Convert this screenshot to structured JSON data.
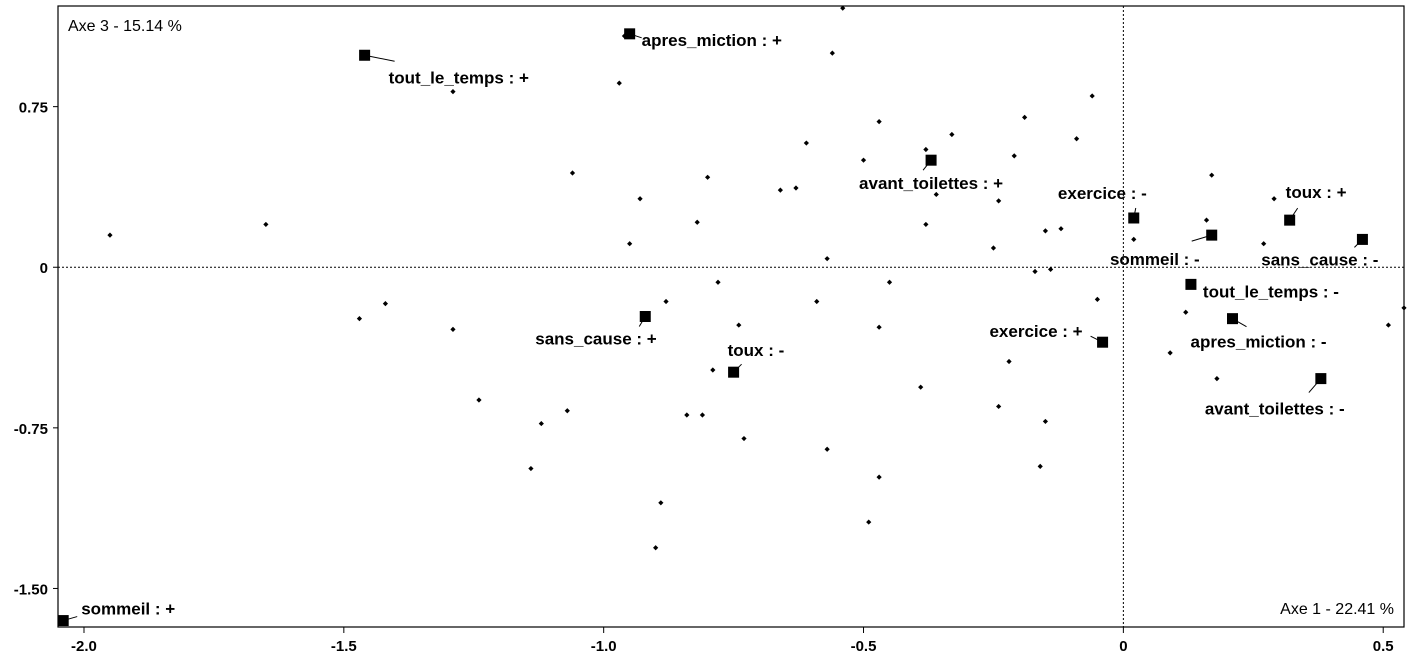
{
  "chart_data": {
    "type": "scatter",
    "title": "",
    "xlabel": "Axe 1  -  22.41 %",
    "ylabel": "Axe 3  -  15.14 %",
    "xlim": [
      -2.05,
      0.54
    ],
    "ylim": [
      -1.68,
      1.22
    ],
    "x_ticks": [
      {
        "value": -2.0,
        "label": "-2.0"
      },
      {
        "value": -1.5,
        "label": "-1.5"
      },
      {
        "value": -1.0,
        "label": "-1.0"
      },
      {
        "value": -0.5,
        "label": "-0.5"
      },
      {
        "value": 0,
        "label": "0"
      },
      {
        "value": 0.5,
        "label": "0.5"
      }
    ],
    "y_ticks": [
      {
        "value": 0.75,
        "label": "0.75"
      },
      {
        "value": 0,
        "label": "0"
      },
      {
        "value": -0.75,
        "label": "-0.75"
      },
      {
        "value": -1.5,
        "label": "-1.50"
      }
    ],
    "reference_lines": {
      "x": 0,
      "y": 0,
      "style": "dotted"
    },
    "categories": [
      {
        "label": "sommeil : +",
        "x": -2.04,
        "y": -1.65
      },
      {
        "label": "tout_le_temps : +",
        "x": -1.46,
        "y": 0.99
      },
      {
        "label": "apres_miction : +",
        "x": -0.95,
        "y": 1.09
      },
      {
        "label": "avant_toilettes : +",
        "x": -0.37,
        "y": 0.5
      },
      {
        "label": "sans_cause : +",
        "x": -0.92,
        "y": -0.23
      },
      {
        "label": "toux : -",
        "x": -0.75,
        "y": -0.49
      },
      {
        "label": "exercice : +",
        "x": -0.04,
        "y": -0.35
      },
      {
        "label": "exercice : -",
        "x": 0.02,
        "y": 0.23
      },
      {
        "label": "sommeil : -",
        "x": 0.17,
        "y": 0.15
      },
      {
        "label": "toux : +",
        "x": 0.32,
        "y": 0.22
      },
      {
        "label": "sans_cause : -",
        "x": 0.46,
        "y": 0.13
      },
      {
        "label": "tout_le_temps : -",
        "x": 0.13,
        "y": -0.08
      },
      {
        "label": "apres_miction : -",
        "x": 0.21,
        "y": -0.24
      },
      {
        "label": "avant_toilettes : -",
        "x": 0.38,
        "y": -0.52
      }
    ],
    "individuals": [
      [
        -1.95,
        0.15
      ],
      [
        -1.65,
        0.2
      ],
      [
        -1.47,
        -0.24
      ],
      [
        -1.42,
        -0.17
      ],
      [
        -1.29,
        -0.29
      ],
      [
        -1.29,
        0.82
      ],
      [
        -1.24,
        -0.62
      ],
      [
        -1.14,
        -0.94
      ],
      [
        -1.12,
        -0.73
      ],
      [
        -1.07,
        -0.67
      ],
      [
        -1.06,
        0.44
      ],
      [
        -0.95,
        0.11
      ],
      [
        -0.97,
        0.86
      ],
      [
        -0.96,
        1.08
      ],
      [
        -0.93,
        0.32
      ],
      [
        -0.89,
        -1.1
      ],
      [
        -0.9,
        -1.31
      ],
      [
        -0.88,
        -0.16
      ],
      [
        -0.84,
        -0.69
      ],
      [
        -0.82,
        0.21
      ],
      [
        -0.81,
        -0.69
      ],
      [
        -0.8,
        0.42
      ],
      [
        -0.79,
        -0.48
      ],
      [
        -0.78,
        -0.07
      ],
      [
        -0.74,
        -0.27
      ],
      [
        -0.73,
        -0.8
      ],
      [
        -0.66,
        0.36
      ],
      [
        -0.63,
        0.37
      ],
      [
        -0.61,
        0.58
      ],
      [
        -0.59,
        -0.16
      ],
      [
        -0.57,
        0.04
      ],
      [
        -0.57,
        -0.85
      ],
      [
        -0.56,
        1.0
      ],
      [
        -0.54,
        1.21
      ],
      [
        -0.5,
        0.5
      ],
      [
        -0.47,
        0.68
      ],
      [
        -0.47,
        -0.28
      ],
      [
        -0.47,
        -0.98
      ],
      [
        -0.49,
        -1.19
      ],
      [
        -0.45,
        -0.07
      ],
      [
        -0.39,
        -0.56
      ],
      [
        -0.38,
        0.55
      ],
      [
        -0.38,
        0.2
      ],
      [
        -0.36,
        0.34
      ],
      [
        -0.33,
        0.62
      ],
      [
        -0.25,
        0.09
      ],
      [
        -0.24,
        0.31
      ],
      [
        -0.24,
        -0.65
      ],
      [
        -0.22,
        -0.44
      ],
      [
        -0.21,
        0.52
      ],
      [
        -0.19,
        0.7
      ],
      [
        -0.17,
        -0.02
      ],
      [
        -0.16,
        -0.93
      ],
      [
        -0.15,
        0.17
      ],
      [
        -0.15,
        -0.72
      ],
      [
        -0.14,
        -0.01
      ],
      [
        -0.12,
        0.18
      ],
      [
        -0.09,
        0.6
      ],
      [
        -0.06,
        0.8
      ],
      [
        -0.05,
        -0.15
      ],
      [
        0.02,
        0.13
      ],
      [
        0.09,
        -0.4
      ],
      [
        0.12,
        -0.21
      ],
      [
        0.16,
        0.22
      ],
      [
        0.17,
        0.43
      ],
      [
        0.18,
        -0.52
      ],
      [
        0.27,
        0.11
      ],
      [
        0.29,
        0.32
      ],
      [
        0.51,
        -0.27
      ],
      [
        0.54,
        -0.19
      ]
    ]
  }
}
